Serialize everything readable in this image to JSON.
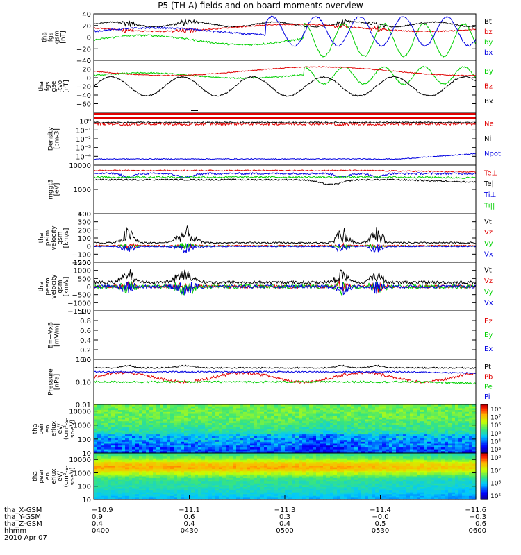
{
  "title": "P5 (TH-A) fields and on-board moments overview",
  "date": "2010 Apr 07",
  "colors": {
    "black": "#000000",
    "red": "#e00000",
    "green": "#00d000",
    "blue": "#0000e0"
  },
  "chart_data": [
    {
      "type": "line",
      "id": "fgs_gsm",
      "ylabel": [
        "tha",
        "fgs",
        "gsm",
        "[nT]"
      ],
      "ylim": [
        -40,
        40
      ],
      "yticks": [
        "40",
        "20",
        "0",
        "−20",
        "−40"
      ],
      "legend": [
        {
          "name": "Bt",
          "color": "black"
        },
        {
          "name": "bz",
          "color": "red"
        },
        {
          "name": "by",
          "color": "green"
        },
        {
          "name": "bx",
          "color": "blue"
        }
      ]
    },
    {
      "type": "line",
      "id": "fgs_gse",
      "ylabel": [
        "tha",
        "fgs",
        "gse",
        "-tvo",
        "[nT]"
      ],
      "ylim": [
        -80,
        40
      ],
      "yticks": [
        "40",
        "20",
        "0",
        "−20",
        "−40",
        "−60"
      ],
      "legend": [
        {
          "name": "By",
          "color": "green"
        },
        {
          "name": "Bz",
          "color": "red"
        },
        {
          "name": "Bx",
          "color": "black"
        }
      ]
    },
    {
      "type": "line",
      "id": "density",
      "ylabel": [
        "Density",
        "[cm-3]"
      ],
      "scale": "log",
      "ylim": [
        1e-05,
        10
      ],
      "yticks": [
        "10⁰",
        "10⁻¹",
        "10⁻²",
        "10⁻³",
        "10⁻⁴"
      ],
      "legend": [
        {
          "name": "Ne",
          "color": "red"
        },
        {
          "name": "Ni",
          "color": "black"
        },
        {
          "name": "Npot",
          "color": "blue"
        }
      ]
    },
    {
      "type": "line",
      "id": "temperature",
      "ylabel": [
        "mggt3",
        "[eV]"
      ],
      "scale": "log",
      "ylim": [
        100,
        10000
      ],
      "yticks": [
        "10000",
        "1000",
        "100"
      ],
      "legend": [
        {
          "name": "Te⊥",
          "color": "red"
        },
        {
          "name": "Te||",
          "color": "black"
        },
        {
          "name": "Ti⊥",
          "color": "blue"
        },
        {
          "name": "Ti||",
          "color": "green"
        }
      ]
    },
    {
      "type": "line",
      "id": "peim_velocity",
      "ylabel": [
        "tha",
        "peim",
        "velocity",
        "gsm",
        "[km/s]"
      ],
      "ylim": [
        -200,
        400
      ],
      "yticks": [
        "400",
        "300",
        "200",
        "100",
        "0",
        "−100",
        "−200"
      ],
      "legend": [
        {
          "name": "Vt",
          "color": "black"
        },
        {
          "name": "Vz",
          "color": "red"
        },
        {
          "name": "Vy",
          "color": "green"
        },
        {
          "name": "Vx",
          "color": "blue"
        }
      ]
    },
    {
      "type": "line",
      "id": "peem_velocity",
      "ylabel": [
        "tha",
        "peem",
        "velocity",
        "gsm",
        "[km/s]"
      ],
      "ylim": [
        -1500,
        1500
      ],
      "yticks": [
        "1500",
        "1000",
        "500",
        "0",
        "−500",
        "−1000",
        "−1500"
      ],
      "legend": [
        {
          "name": "Vt",
          "color": "black"
        },
        {
          "name": "Vz",
          "color": "red"
        },
        {
          "name": "Vy",
          "color": "green"
        },
        {
          "name": "Vx",
          "color": "blue"
        }
      ]
    },
    {
      "type": "line",
      "id": "efield",
      "ylabel": [
        "E=−VxB",
        "[mV/m]"
      ],
      "ylim": [
        0,
        1
      ],
      "yticks": [
        "1.0",
        "0.8",
        "0.6",
        "0.4",
        "0.2",
        "0.0"
      ],
      "legend": [
        {
          "name": "Ez",
          "color": "red"
        },
        {
          "name": "Ey",
          "color": "green"
        },
        {
          "name": "Ex",
          "color": "blue"
        }
      ]
    },
    {
      "type": "line",
      "id": "pressure",
      "ylabel": [
        "Pressure",
        "[nPa]"
      ],
      "scale": "log",
      "ylim": [
        0.01,
        1
      ],
      "yticks": [
        "1.00",
        "0.10",
        "0.01"
      ],
      "legend": [
        {
          "name": "Pt",
          "color": "black"
        },
        {
          "name": "Pb",
          "color": "red"
        },
        {
          "name": "Pe",
          "color": "green"
        },
        {
          "name": "Pi",
          "color": "blue"
        }
      ]
    },
    {
      "type": "heatmap",
      "id": "peir_eflux",
      "ylabel": [
        "tha",
        "peir",
        "en",
        "eflux",
        "eV/",
        "(cm²-s-",
        "sr-eV)"
      ],
      "scale": "log",
      "ylim": [
        10,
        30000
      ],
      "yticks": [
        "10000",
        "1000",
        "100",
        "10"
      ],
      "colorbar_ticks": [
        "10⁸",
        "10⁷",
        "10⁶",
        "10⁵",
        "10⁴",
        "10³"
      ]
    },
    {
      "type": "heatmap",
      "id": "peer_eflux",
      "ylabel": [
        "tha",
        "peer",
        "en",
        "eflux",
        "eV/",
        "(cm²-s-",
        "sr-eV)"
      ],
      "scale": "log",
      "ylim": [
        10,
        30000
      ],
      "yticks": [
        "10000",
        "1000",
        "100",
        "10"
      ],
      "colorbar_ticks": [
        "10⁸",
        "10⁷",
        "10⁶",
        "10⁵"
      ]
    }
  ],
  "x_axis": {
    "rows": [
      {
        "label": "tha_X-GSM",
        "values": [
          "−10.9",
          "−11.1",
          "−11.3",
          "−11.4",
          "−11.6"
        ]
      },
      {
        "label": "tha_Y-GSM",
        "values": [
          "0.9",
          "0.6",
          "0.3",
          "−0.0",
          "−0.3"
        ]
      },
      {
        "label": "tha_Z-GSM",
        "values": [
          "0.4",
          "0.4",
          "0.4",
          "0.5",
          "0.6"
        ]
      },
      {
        "label": "hhmm",
        "values": [
          "0400",
          "0430",
          "0500",
          "0530",
          "0600"
        ]
      }
    ]
  }
}
